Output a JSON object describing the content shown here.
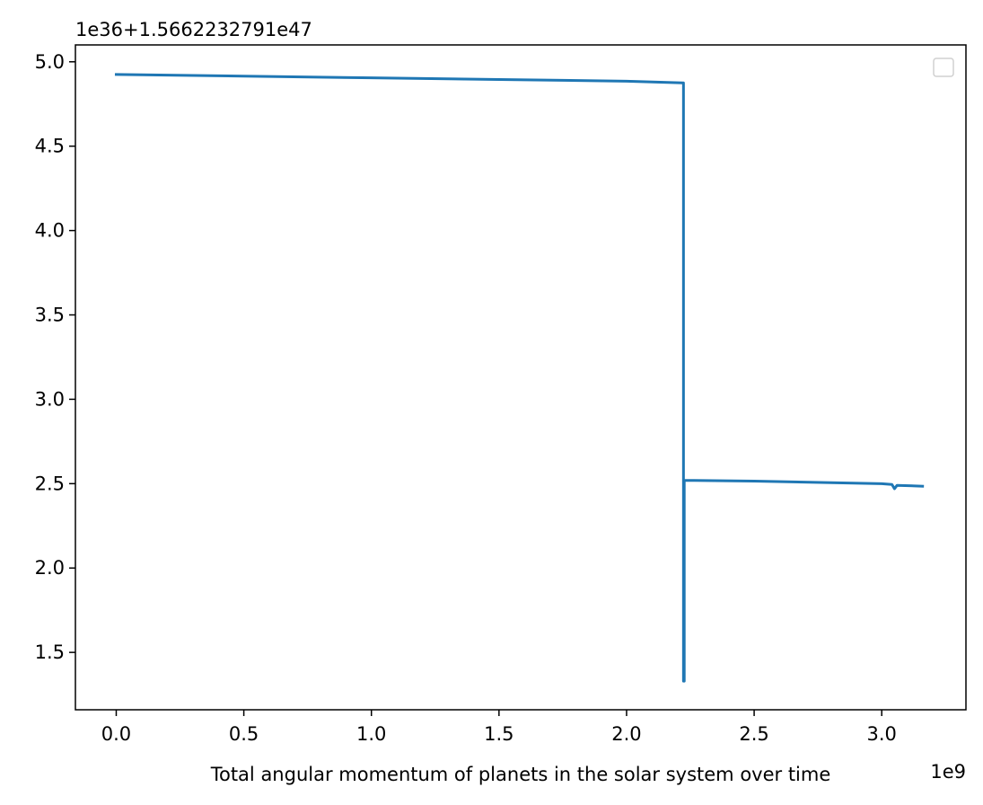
{
  "chart_data": {
    "type": "line",
    "title": "",
    "xlabel": "Total angular momentum of planets in the solar system over time",
    "ylabel": "",
    "x_offset_text": "1e9",
    "y_offset_text": "1e36+1.5662232791e47",
    "xlim": [
      -0.16,
      3.33
    ],
    "ylim": [
      1.16,
      5.1
    ],
    "xticks": [
      0.0,
      0.5,
      1.0,
      1.5,
      2.0,
      2.5,
      3.0
    ],
    "xtick_labels": [
      "0.0",
      "0.5",
      "1.0",
      "1.5",
      "2.0",
      "2.5",
      "3.0"
    ],
    "yticks": [
      1.5,
      2.0,
      2.5,
      3.0,
      3.5,
      4.0,
      4.5,
      5.0
    ],
    "ytick_labels": [
      "1.5",
      "2.0",
      "2.5",
      "3.0",
      "3.5",
      "4.0",
      "4.5",
      "5.0"
    ],
    "grid": false,
    "legend": {
      "placement": "top-right",
      "entries": []
    },
    "series": [
      {
        "color": "#1f77b4",
        "x": [
          0.0,
          0.5,
          1.0,
          1.5,
          2.0,
          2.22,
          2.223,
          2.223,
          2.226,
          2.226,
          2.5,
          3.0,
          3.04,
          3.05,
          3.06,
          3.16
        ],
        "y": [
          4.925,
          4.915,
          4.905,
          4.895,
          4.885,
          4.875,
          4.875,
          1.33,
          1.33,
          2.52,
          2.515,
          2.5,
          2.495,
          2.47,
          2.49,
          2.485
        ]
      }
    ]
  }
}
